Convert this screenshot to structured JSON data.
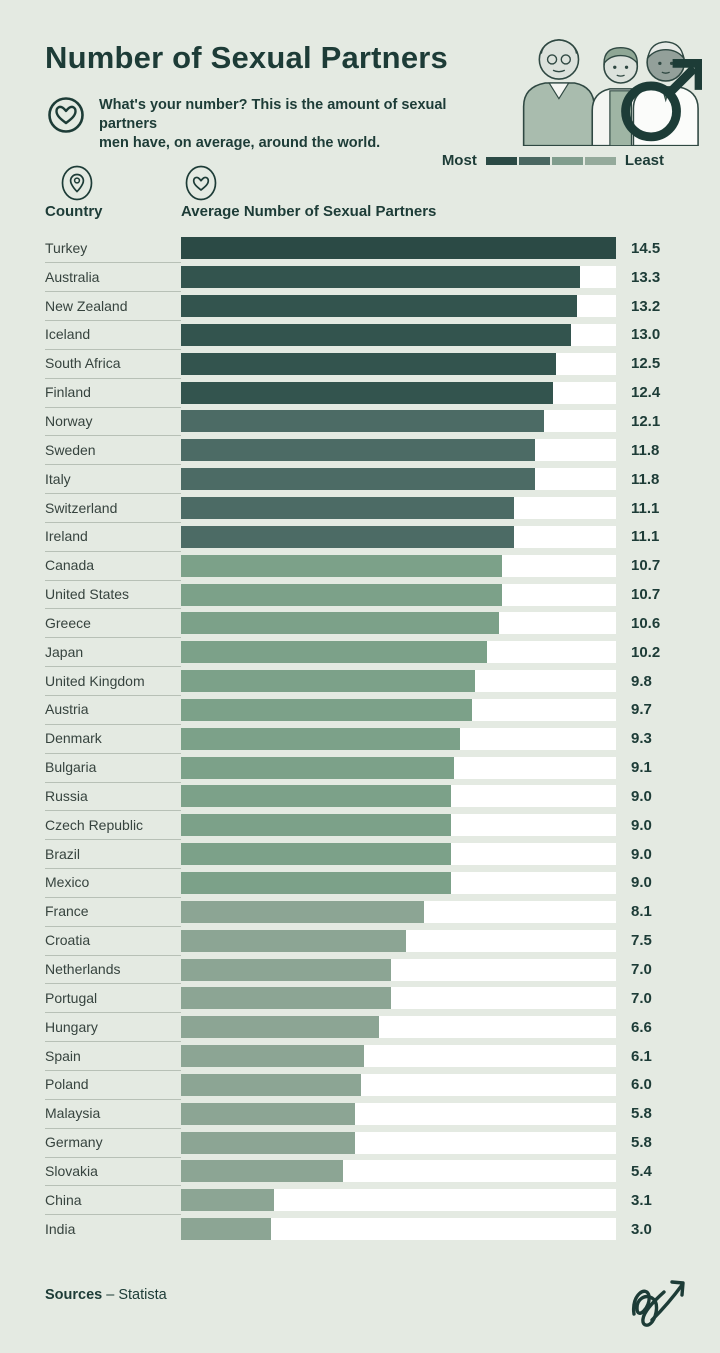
{
  "page": {
    "background": "#E4EAE2",
    "accent": "#1D3C37",
    "track_color": "#FFFFFF",
    "divider_color": "#B7C0B6"
  },
  "header": {
    "title": "Number of Sexual Partners",
    "subtitle_line1": "What's your number? This is the amount of sexual partners",
    "subtitle_line2": "men have, on average, around the world.",
    "heart_icon": "heart-in-circle-icon",
    "illustration": "three-men-with-male-symbol"
  },
  "legend": {
    "most_label": "Most",
    "least_label": "Least",
    "swatches": [
      "#2B4A45",
      "#4A6761",
      "#809D8D",
      "#94AA9B"
    ]
  },
  "columns": {
    "country": "Country",
    "value": "Average Number of Sexual Partners",
    "country_icon": "map-pin-icon",
    "value_icon": "heart-icon"
  },
  "chart_data": {
    "type": "bar",
    "orientation": "horizontal",
    "title": "Number of Sexual Partners",
    "xlabel": "Average Number of Sexual Partners",
    "max_value": 14.5,
    "grid": false,
    "categories": [
      "Turkey",
      "Australia",
      "New Zealand",
      "Iceland",
      "South Africa",
      "Finland",
      "Norway",
      "Sweden",
      "Italy",
      "Switzerland",
      "Ireland",
      "Canada",
      "United States",
      "Greece",
      "Japan",
      "United Kingdom",
      "Austria",
      "Denmark",
      "Bulgaria",
      "Russia",
      "Czech Republic",
      "Brazil",
      "Mexico",
      "France",
      "Croatia",
      "Netherlands",
      "Portugal",
      "Hungary",
      "Spain",
      "Poland",
      "Malaysia",
      "Germany",
      "Slovakia",
      "China",
      "India"
    ],
    "values": [
      14.5,
      13.3,
      13.2,
      13.0,
      12.5,
      12.4,
      12.1,
      11.8,
      11.8,
      11.1,
      11.1,
      10.7,
      10.7,
      10.6,
      10.2,
      9.8,
      9.7,
      9.3,
      9.1,
      9.0,
      9.0,
      9.0,
      9.0,
      8.1,
      7.5,
      7.0,
      7.0,
      6.6,
      6.1,
      6.0,
      5.8,
      5.8,
      5.4,
      3.1,
      3.0
    ],
    "bar_colors": [
      "#2B4A45",
      "#33544E",
      "#33544E",
      "#33544E",
      "#33544E",
      "#33544E",
      "#4C6B65",
      "#4C6B65",
      "#4C6B65",
      "#4C6B65",
      "#4C6B65",
      "#7CA189",
      "#7CA189",
      "#7CA189",
      "#7CA189",
      "#7CA189",
      "#7CA189",
      "#7CA189",
      "#7CA189",
      "#7CA189",
      "#7CA189",
      "#7CA189",
      "#7CA189",
      "#8CA594",
      "#8CA594",
      "#8CA594",
      "#8CA594",
      "#8CA594",
      "#8CA594",
      "#8CA594",
      "#8CA594",
      "#8CA594",
      "#8CA594",
      "#8CA594",
      "#8CA594"
    ]
  },
  "footer": {
    "sources_label": "Sources",
    "sources_value": "– Statista",
    "logo_icon": "signature-arrow-logo"
  }
}
